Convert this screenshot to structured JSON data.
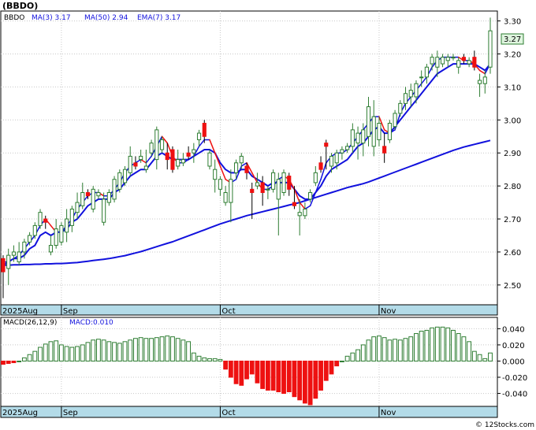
{
  "title": "(BBDO)",
  "price_legend": {
    "ticker": "BBDO",
    "ma3": "MA(3)  3.17",
    "ma50": "MA(50)  2.94",
    "ema7": "EMA(7)  3.17"
  },
  "last_price_label": "3.27",
  "macd_legend": {
    "name": "MACD(26,12,9)",
    "value": "MACD:0.010"
  },
  "watermark": "© 12Stocks.com",
  "colors": {
    "up_candle": "#2e7d32",
    "down_candle": "#ee1111",
    "ma_fast_up": "#1111dd",
    "ma_fast_down": "#ee1111",
    "ema": "#1111dd",
    "ma50": "#1111dd",
    "macd_pos": "#2e7d32",
    "macd_neg": "#ee1111",
    "time_axis_bg": "#b3dbe8",
    "grid": "#c8c8c8"
  },
  "chart_data": [
    {
      "type": "candlestick",
      "title": "(BBDO)",
      "x_tick_labels": [
        "2025Aug",
        "Sep",
        "Oct",
        "Nov"
      ],
      "x_tick_index": [
        0,
        11,
        41,
        71
      ],
      "y_ticks": [
        2.5,
        2.6,
        2.7,
        2.8,
        2.9,
        3.0,
        3.1,
        3.2,
        3.3
      ],
      "y_tick_labels": [
        "2.50",
        "2.60",
        "2.70",
        "2.80",
        "2.90",
        "3.00",
        "3.10",
        "3.20",
        "3.30"
      ],
      "ylim": [
        2.44,
        3.33
      ],
      "grid": true,
      "legend_position": "top-left",
      "series": [
        {
          "name": "BBDO",
          "ohlc": [
            [
              2.58,
              2.59,
              2.46,
              2.54
            ],
            [
              2.55,
              2.61,
              2.5,
              2.59
            ],
            [
              2.59,
              2.62,
              2.57,
              2.6
            ],
            [
              2.57,
              2.63,
              2.56,
              2.6
            ],
            [
              2.6,
              2.64,
              2.58,
              2.63
            ],
            [
              2.63,
              2.66,
              2.62,
              2.65
            ],
            [
              2.65,
              2.69,
              2.64,
              2.68
            ],
            [
              2.68,
              2.73,
              2.67,
              2.72
            ],
            [
              2.7,
              2.71,
              2.67,
              2.69
            ],
            [
              2.6,
              2.65,
              2.59,
              2.62
            ],
            [
              2.62,
              2.7,
              2.61,
              2.67
            ],
            [
              2.63,
              2.69,
              2.62,
              2.68
            ],
            [
              2.66,
              2.73,
              2.63,
              2.7
            ],
            [
              2.68,
              2.74,
              2.66,
              2.73
            ],
            [
              2.72,
              2.78,
              2.7,
              2.75
            ],
            [
              2.74,
              2.81,
              2.73,
              2.78
            ],
            [
              2.78,
              2.79,
              2.76,
              2.77
            ],
            [
              2.73,
              2.8,
              2.72,
              2.79
            ],
            [
              2.77,
              2.79,
              2.76,
              2.78
            ],
            [
              2.69,
              2.78,
              2.68,
              2.76
            ],
            [
              2.75,
              2.79,
              2.74,
              2.78
            ],
            [
              2.76,
              2.83,
              2.75,
              2.82
            ],
            [
              2.79,
              2.85,
              2.78,
              2.84
            ],
            [
              2.81,
              2.86,
              2.8,
              2.85
            ],
            [
              2.84,
              2.92,
              2.83,
              2.89
            ],
            [
              2.87,
              2.89,
              2.85,
              2.86
            ],
            [
              2.88,
              2.91,
              2.87,
              2.89
            ],
            [
              2.85,
              2.91,
              2.84,
              2.86
            ],
            [
              2.9,
              2.94,
              2.89,
              2.93
            ],
            [
              2.88,
              2.98,
              2.85,
              2.97
            ],
            [
              2.91,
              2.95,
              2.9,
              2.94
            ],
            [
              2.9,
              2.93,
              2.85,
              2.88
            ],
            [
              2.91,
              2.92,
              2.84,
              2.85
            ],
            [
              2.86,
              2.91,
              2.85,
              2.88
            ],
            [
              2.87,
              2.9,
              2.86,
              2.88
            ],
            [
              2.9,
              2.92,
              2.88,
              2.89
            ],
            [
              2.9,
              2.93,
              2.87,
              2.91
            ],
            [
              2.94,
              2.97,
              2.92,
              2.96
            ],
            [
              2.99,
              3.0,
              2.93,
              2.95
            ],
            [
              2.86,
              2.91,
              2.85,
              2.9
            ],
            [
              2.82,
              2.88,
              2.78,
              2.85
            ],
            [
              2.79,
              2.83,
              2.77,
              2.82
            ],
            [
              2.75,
              2.8,
              2.74,
              2.78
            ],
            [
              2.75,
              2.85,
              2.69,
              2.82
            ],
            [
              2.84,
              2.88,
              2.82,
              2.87
            ],
            [
              2.87,
              2.9,
              2.85,
              2.89
            ],
            [
              2.86,
              2.87,
              2.82,
              2.84
            ],
            [
              2.79,
              2.81,
              2.7,
              2.78
            ],
            [
              2.8,
              2.84,
              2.79,
              2.81
            ],
            [
              2.81,
              2.83,
              2.74,
              2.78
            ],
            [
              2.79,
              2.8,
              2.76,
              2.79
            ],
            [
              2.79,
              2.85,
              2.78,
              2.84
            ],
            [
              2.76,
              2.84,
              2.65,
              2.82
            ],
            [
              2.78,
              2.85,
              2.77,
              2.84
            ],
            [
              2.83,
              2.84,
              2.77,
              2.79
            ],
            [
              2.75,
              2.8,
              2.73,
              2.74
            ],
            [
              2.71,
              2.76,
              2.65,
              2.72
            ],
            [
              2.71,
              2.75,
              2.7,
              2.73
            ],
            [
              2.76,
              2.79,
              2.75,
              2.78
            ],
            [
              2.81,
              2.86,
              2.8,
              2.84
            ],
            [
              2.87,
              2.89,
              2.84,
              2.85
            ],
            [
              2.93,
              2.94,
              2.85,
              2.92
            ],
            [
              2.86,
              2.9,
              2.84,
              2.89
            ],
            [
              2.87,
              2.91,
              2.85,
              2.9
            ],
            [
              2.9,
              2.92,
              2.88,
              2.91
            ],
            [
              2.91,
              2.93,
              2.9,
              2.92
            ],
            [
              2.92,
              2.99,
              2.9,
              2.97
            ],
            [
              2.93,
              2.98,
              2.88,
              2.96
            ],
            [
              2.93,
              2.99,
              2.89,
              2.97
            ],
            [
              2.95,
              3.07,
              2.92,
              3.04
            ],
            [
              2.92,
              3.06,
              2.89,
              3.01
            ],
            [
              2.94,
              3.01,
              2.92,
              2.99
            ],
            [
              2.92,
              2.96,
              2.87,
              2.9
            ],
            [
              2.94,
              3.0,
              2.93,
              2.99
            ],
            [
              2.98,
              3.03,
              2.97,
              3.02
            ],
            [
              3.02,
              3.06,
              3.01,
              3.05
            ],
            [
              3.05,
              3.1,
              3.03,
              3.08
            ],
            [
              3.07,
              3.11,
              3.04,
              3.09
            ],
            [
              3.07,
              3.12,
              3.05,
              3.11
            ],
            [
              3.13,
              3.15,
              3.1,
              3.13
            ],
            [
              3.13,
              3.17,
              3.11,
              3.16
            ],
            [
              3.17,
              3.2,
              3.15,
              3.19
            ],
            [
              3.16,
              3.21,
              3.13,
              3.19
            ],
            [
              3.17,
              3.2,
              3.16,
              3.19
            ],
            [
              3.18,
              3.2,
              3.16,
              3.19
            ],
            [
              3.19,
              3.2,
              3.18,
              3.19
            ],
            [
              3.16,
              3.19,
              3.14,
              3.18
            ],
            [
              3.19,
              3.2,
              3.17,
              3.18
            ],
            [
              3.17,
              3.19,
              3.16,
              3.18
            ],
            [
              3.19,
              3.21,
              3.15,
              3.16
            ],
            [
              3.11,
              3.14,
              3.07,
              3.12
            ],
            [
              3.11,
              3.15,
              3.08,
              3.13
            ],
            [
              3.16,
              3.31,
              3.14,
              3.27
            ]
          ]
        },
        {
          "name": "MA(3)",
          "values": [
            2.57,
            2.57,
            2.58,
            2.59,
            2.61,
            2.63,
            2.65,
            2.68,
            2.7,
            2.68,
            2.66,
            2.66,
            2.68,
            2.7,
            2.73,
            2.75,
            2.77,
            2.78,
            2.78,
            2.77,
            2.77,
            2.79,
            2.81,
            2.84,
            2.86,
            2.87,
            2.88,
            2.87,
            2.89,
            2.92,
            2.95,
            2.93,
            2.89,
            2.87,
            2.87,
            2.88,
            2.89,
            2.92,
            2.94,
            2.94,
            2.9,
            2.86,
            2.82,
            2.81,
            2.82,
            2.86,
            2.87,
            2.84,
            2.81,
            2.79,
            2.79,
            2.8,
            2.82,
            2.83,
            2.82,
            2.79,
            2.75,
            2.73,
            2.74,
            2.78,
            2.82,
            2.87,
            2.89,
            2.9,
            2.9,
            2.91,
            2.93,
            2.95,
            2.97,
            2.99,
            3.01,
            3.01,
            2.97,
            2.96,
            2.97,
            3.02,
            3.05,
            3.07,
            3.09,
            3.11,
            3.13,
            3.16,
            3.18,
            3.19,
            3.19,
            3.19,
            3.19,
            3.18,
            3.18,
            3.17,
            3.15,
            3.14,
            3.17
          ]
        },
        {
          "name": "EMA(7)",
          "values": [
            2.56,
            2.57,
            2.58,
            2.58,
            2.59,
            2.61,
            2.62,
            2.65,
            2.66,
            2.65,
            2.66,
            2.66,
            2.67,
            2.69,
            2.7,
            2.72,
            2.74,
            2.75,
            2.76,
            2.76,
            2.76,
            2.78,
            2.79,
            2.81,
            2.83,
            2.84,
            2.85,
            2.85,
            2.87,
            2.89,
            2.9,
            2.89,
            2.88,
            2.88,
            2.88,
            2.88,
            2.89,
            2.9,
            2.91,
            2.91,
            2.9,
            2.87,
            2.85,
            2.84,
            2.84,
            2.85,
            2.85,
            2.83,
            2.82,
            2.81,
            2.8,
            2.81,
            2.81,
            2.81,
            2.81,
            2.79,
            2.77,
            2.76,
            2.76,
            2.78,
            2.8,
            2.83,
            2.85,
            2.86,
            2.87,
            2.88,
            2.9,
            2.92,
            2.93,
            2.95,
            2.97,
            2.98,
            2.96,
            2.96,
            2.98,
            3.0,
            3.02,
            3.04,
            3.06,
            3.08,
            3.1,
            3.12,
            3.14,
            3.15,
            3.16,
            3.17,
            3.17,
            3.17,
            3.17,
            3.17,
            3.16,
            3.15,
            3.17
          ]
        },
        {
          "name": "MA(50)",
          "values": [
            2.56,
            2.56,
            2.561,
            2.561,
            2.562,
            2.562,
            2.563,
            2.563,
            2.564,
            2.564,
            2.565,
            2.565,
            2.566,
            2.567,
            2.568,
            2.57,
            2.572,
            2.574,
            2.576,
            2.578,
            2.58,
            2.583,
            2.586,
            2.589,
            2.593,
            2.597,
            2.601,
            2.606,
            2.611,
            2.616,
            2.621,
            2.626,
            2.631,
            2.637,
            2.643,
            2.649,
            2.655,
            2.661,
            2.667,
            2.673,
            2.679,
            2.685,
            2.69,
            2.695,
            2.7,
            2.705,
            2.71,
            2.714,
            2.718,
            2.722,
            2.726,
            2.73,
            2.734,
            2.738,
            2.742,
            2.746,
            2.75,
            2.755,
            2.76,
            2.765,
            2.77,
            2.775,
            2.78,
            2.785,
            2.79,
            2.795,
            2.799,
            2.803,
            2.807,
            2.812,
            2.818,
            2.824,
            2.83,
            2.836,
            2.842,
            2.848,
            2.854,
            2.86,
            2.866,
            2.872,
            2.878,
            2.884,
            2.89,
            2.896,
            2.902,
            2.908,
            2.913,
            2.918,
            2.922,
            2.926,
            2.93,
            2.934,
            2.938
          ]
        }
      ]
    },
    {
      "type": "bar",
      "title": "MACD(26,12,9)",
      "x_tick_labels": [
        "2025Aug",
        "Sep",
        "Oct",
        "Nov"
      ],
      "x_tick_index": [
        0,
        11,
        41,
        71
      ],
      "y_ticks": [
        -0.04,
        -0.02,
        0.0,
        0.02,
        0.04
      ],
      "y_tick_labels": [
        "-0.040",
        "-0.020",
        "0.000",
        "0.020",
        "0.040"
      ],
      "ylim": [
        -0.056,
        0.054
      ],
      "grid": true,
      "series": [
        {
          "name": "MACD",
          "values": [
            -0.004,
            -0.003,
            -0.002,
            0.0,
            0.004,
            0.008,
            0.012,
            0.017,
            0.021,
            0.024,
            0.025,
            0.02,
            0.018,
            0.017,
            0.018,
            0.02,
            0.023,
            0.026,
            0.027,
            0.026,
            0.024,
            0.023,
            0.022,
            0.024,
            0.026,
            0.028,
            0.029,
            0.028,
            0.028,
            0.029,
            0.03,
            0.031,
            0.03,
            0.028,
            0.026,
            0.024,
            0.01,
            0.006,
            0.004,
            0.003,
            0.003,
            0.002,
            -0.01,
            -0.02,
            -0.028,
            -0.03,
            -0.022,
            -0.016,
            -0.027,
            -0.034,
            -0.036,
            -0.036,
            -0.038,
            -0.04,
            -0.038,
            -0.044,
            -0.048,
            -0.052,
            -0.054,
            -0.046,
            -0.036,
            -0.024,
            -0.016,
            -0.006,
            0.0,
            0.006,
            0.01,
            0.014,
            0.02,
            0.026,
            0.03,
            0.031,
            0.029,
            0.026,
            0.027,
            0.026,
            0.028,
            0.03,
            0.034,
            0.037,
            0.038,
            0.041,
            0.042,
            0.042,
            0.041,
            0.038,
            0.034,
            0.03,
            0.024,
            0.012,
            0.008,
            0.003,
            0.01
          ]
        }
      ]
    }
  ]
}
